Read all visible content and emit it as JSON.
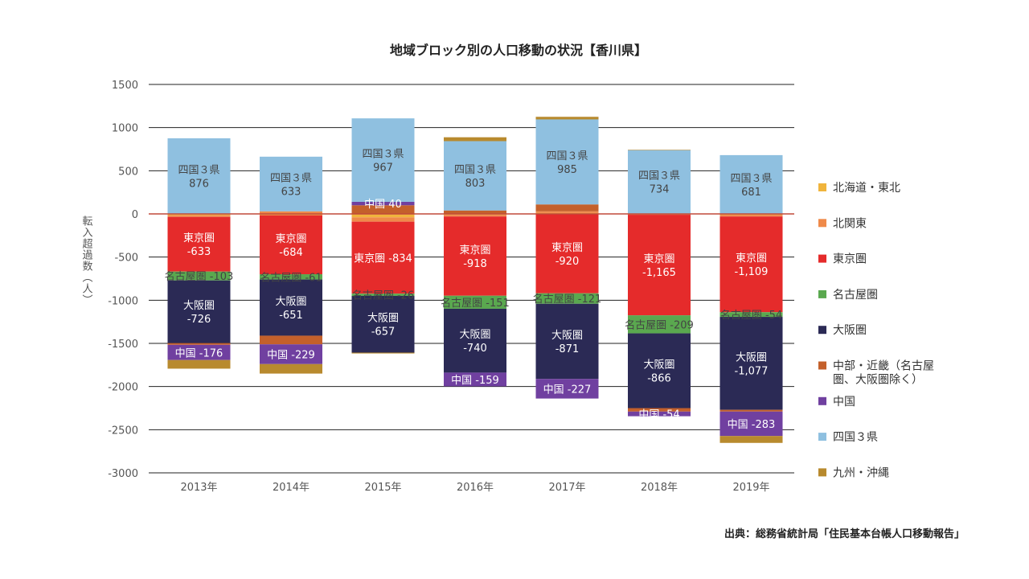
{
  "chart_data": {
    "type": "bar",
    "stacked": true,
    "title": "地域ブロック別の人口移動の状況【香川県】",
    "ylabel": "転入超過数（人）",
    "ylim": [
      -3000,
      1500
    ],
    "yticks": [
      1500,
      1000,
      500,
      0,
      -500,
      -1000,
      -1500,
      -2000,
      -2500,
      -3000
    ],
    "categories": [
      "2013年",
      "2014年",
      "2015年",
      "2016年",
      "2017年",
      "2018年",
      "2019年"
    ],
    "series": [
      {
        "key": "hokkaido",
        "name": "北海道・東北",
        "color": "#f0b43c",
        "values": [
          -15,
          -15,
          -40,
          -10,
          10,
          5,
          -10
        ]
      },
      {
        "key": "kitakanto",
        "name": "北関東",
        "color": "#ef8a4a",
        "values": [
          -20,
          30,
          -50,
          -20,
          20,
          -10,
          -20
        ]
      },
      {
        "key": "tokyo",
        "name": "東京圏",
        "color": "#e52b2b",
        "values": [
          -633,
          -684,
          -834,
          -918,
          -920,
          -1165,
          -1109
        ]
      },
      {
        "key": "nagoya",
        "name": "名古屋圏",
        "color": "#5aa84f",
        "values": [
          -103,
          -61,
          -26,
          -151,
          -121,
          -209,
          -54
        ]
      },
      {
        "key": "osaka",
        "name": "大阪圏",
        "color": "#2b2a55",
        "values": [
          -726,
          -651,
          -657,
          -740,
          -871,
          -866,
          -1077
        ]
      },
      {
        "key": "chubu_kinki",
        "name": "中部・近畿（名古屋圏、大阪圏除く）",
        "color": "#c4602b",
        "values": [
          -20,
          -100,
          100,
          40,
          80,
          -40,
          -20
        ]
      },
      {
        "key": "chugoku",
        "name": "中国",
        "color": "#7040a0",
        "values": [
          -176,
          -229,
          40,
          -159,
          -227,
          -54,
          -283
        ]
      },
      {
        "key": "shikoku",
        "name": "四国３県",
        "color": "#8fc0e0",
        "values": [
          876,
          633,
          967,
          803,
          985,
          734,
          681
        ]
      },
      {
        "key": "kyushu",
        "name": "九州・沖縄",
        "color": "#b88a2e",
        "values": [
          -100,
          -110,
          -10,
          45,
          30,
          5,
          -80
        ]
      }
    ],
    "legend": [
      {
        "name": "北海道・東北",
        "color": "#f0b43c"
      },
      {
        "name": "北関東",
        "color": "#ef8a4a"
      },
      {
        "name": "東京圏",
        "color": "#e52b2b"
      },
      {
        "name": "名古屋圏",
        "color": "#5aa84f"
      },
      {
        "name": "大阪圏",
        "color": "#2b2a55"
      },
      {
        "name": "中部・近畿（名古屋\n圏、大阪圏除く）",
        "color": "#c4602b"
      },
      {
        "name": "中国",
        "color": "#7040a0"
      },
      {
        "name": "四国３県",
        "color": "#8fc0e0"
      },
      {
        "name": "九州・沖縄",
        "color": "#b88a2e"
      }
    ],
    "legend_position": "right",
    "grid": true
  },
  "labels": [
    {
      "cat": 0,
      "series": "shikoku",
      "lines": [
        "四国３県",
        "876"
      ],
      "color": "dark"
    },
    {
      "cat": 0,
      "series": "tokyo",
      "lines": [
        "東京圏",
        "-633"
      ],
      "color": "light"
    },
    {
      "cat": 0,
      "series": "nagoya",
      "lines": [
        "名古屋圏 -103"
      ],
      "color": "dark",
      "single": true
    },
    {
      "cat": 0,
      "series": "osaka",
      "lines": [
        "大阪圏",
        "-726"
      ],
      "color": "light"
    },
    {
      "cat": 0,
      "series": "chugoku",
      "lines": [
        "中国 -176"
      ],
      "color": "light",
      "single": true
    },
    {
      "cat": 1,
      "series": "shikoku",
      "lines": [
        "四国３県",
        "633"
      ],
      "color": "dark"
    },
    {
      "cat": 1,
      "series": "tokyo",
      "lines": [
        "東京圏",
        "-684"
      ],
      "color": "light"
    },
    {
      "cat": 1,
      "series": "nagoya",
      "lines": [
        "名古屋圏 -61"
      ],
      "color": "dark",
      "single": true
    },
    {
      "cat": 1,
      "series": "osaka",
      "lines": [
        "大阪圏",
        "-651"
      ],
      "color": "light"
    },
    {
      "cat": 1,
      "series": "chugoku",
      "lines": [
        "中国 -229"
      ],
      "color": "light",
      "single": true
    },
    {
      "cat": 2,
      "series": "shikoku",
      "lines": [
        "四国３県",
        "967"
      ],
      "color": "dark"
    },
    {
      "cat": 2,
      "series": "chugoku",
      "lines": [
        "中国 40"
      ],
      "color": "light",
      "single": true
    },
    {
      "cat": 2,
      "series": "tokyo",
      "lines": [
        "東京圏 -834"
      ],
      "color": "light",
      "single": true
    },
    {
      "cat": 2,
      "series": "nagoya",
      "lines": [
        "名古屋圏 -26"
      ],
      "color": "dark",
      "single": true
    },
    {
      "cat": 2,
      "series": "osaka",
      "lines": [
        "大阪圏",
        "-657"
      ],
      "color": "light"
    },
    {
      "cat": 3,
      "series": "shikoku",
      "lines": [
        "四国３県",
        "803"
      ],
      "color": "dark"
    },
    {
      "cat": 3,
      "series": "tokyo",
      "lines": [
        "東京圏",
        "-918"
      ],
      "color": "light"
    },
    {
      "cat": 3,
      "series": "nagoya",
      "lines": [
        "名古屋圏 -151"
      ],
      "color": "dark",
      "single": true
    },
    {
      "cat": 3,
      "series": "osaka",
      "lines": [
        "大阪圏",
        "-740"
      ],
      "color": "light"
    },
    {
      "cat": 3,
      "series": "chugoku",
      "lines": [
        "中国 -159"
      ],
      "color": "light",
      "single": true
    },
    {
      "cat": 4,
      "series": "shikoku",
      "lines": [
        "四国３県",
        "985"
      ],
      "color": "dark"
    },
    {
      "cat": 4,
      "series": "tokyo",
      "lines": [
        "東京圏",
        "-920"
      ],
      "color": "light"
    },
    {
      "cat": 4,
      "series": "nagoya",
      "lines": [
        "名古屋圏 -121"
      ],
      "color": "dark",
      "single": true
    },
    {
      "cat": 4,
      "series": "osaka",
      "lines": [
        "大阪圏",
        "-871"
      ],
      "color": "light"
    },
    {
      "cat": 4,
      "series": "chugoku",
      "lines": [
        "中国 -227"
      ],
      "color": "light",
      "single": true
    },
    {
      "cat": 5,
      "series": "shikoku",
      "lines": [
        "四国３県",
        "734"
      ],
      "color": "dark"
    },
    {
      "cat": 5,
      "series": "tokyo",
      "lines": [
        "東京圏",
        "-1,165"
      ],
      "color": "light"
    },
    {
      "cat": 5,
      "series": "nagoya",
      "lines": [
        "名古屋圏 -209"
      ],
      "color": "dark",
      "single": true
    },
    {
      "cat": 5,
      "series": "osaka",
      "lines": [
        "大阪圏",
        "-866"
      ],
      "color": "light"
    },
    {
      "cat": 5,
      "series": "chugoku",
      "lines": [
        "中国 -54"
      ],
      "color": "light",
      "single": true
    },
    {
      "cat": 6,
      "series": "shikoku",
      "lines": [
        "四国３県",
        "681"
      ],
      "color": "dark"
    },
    {
      "cat": 6,
      "series": "tokyo",
      "lines": [
        "東京圏",
        "-1,109"
      ],
      "color": "light"
    },
    {
      "cat": 6,
      "series": "nagoya",
      "lines": [
        "名古屋圏 -54"
      ],
      "color": "dark",
      "single": true
    },
    {
      "cat": 6,
      "series": "osaka",
      "lines": [
        "大阪圏",
        "-1,077"
      ],
      "color": "light"
    },
    {
      "cat": 6,
      "series": "chugoku",
      "lines": [
        "中国 -283"
      ],
      "color": "light",
      "single": true
    }
  ],
  "source": "出典：総務省統計局「住民基本台帳人口移動報告」"
}
